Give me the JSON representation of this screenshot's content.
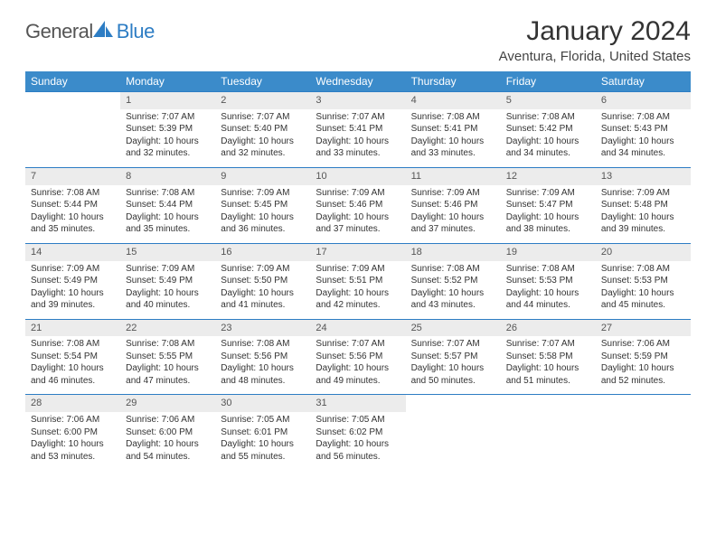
{
  "logo": {
    "general": "General",
    "blue": "Blue"
  },
  "title": "January 2024",
  "location": "Aventura, Florida, United States",
  "weekdays": [
    "Sunday",
    "Monday",
    "Tuesday",
    "Wednesday",
    "Thursday",
    "Friday",
    "Saturday"
  ],
  "colors": {
    "header_bg": "#3b8bca",
    "header_text": "#ffffff",
    "daynum_bg": "#ececec",
    "border": "#2d7dc4",
    "text": "#333333",
    "logo_gray": "#555555",
    "logo_blue": "#2d7dc4"
  },
  "first_weekday_index": 1,
  "days": [
    {
      "n": 1,
      "sunrise": "7:07 AM",
      "sunset": "5:39 PM",
      "daylight": "10 hours and 32 minutes."
    },
    {
      "n": 2,
      "sunrise": "7:07 AM",
      "sunset": "5:40 PM",
      "daylight": "10 hours and 32 minutes."
    },
    {
      "n": 3,
      "sunrise": "7:07 AM",
      "sunset": "5:41 PM",
      "daylight": "10 hours and 33 minutes."
    },
    {
      "n": 4,
      "sunrise": "7:08 AM",
      "sunset": "5:41 PM",
      "daylight": "10 hours and 33 minutes."
    },
    {
      "n": 5,
      "sunrise": "7:08 AM",
      "sunset": "5:42 PM",
      "daylight": "10 hours and 34 minutes."
    },
    {
      "n": 6,
      "sunrise": "7:08 AM",
      "sunset": "5:43 PM",
      "daylight": "10 hours and 34 minutes."
    },
    {
      "n": 7,
      "sunrise": "7:08 AM",
      "sunset": "5:44 PM",
      "daylight": "10 hours and 35 minutes."
    },
    {
      "n": 8,
      "sunrise": "7:08 AM",
      "sunset": "5:44 PM",
      "daylight": "10 hours and 35 minutes."
    },
    {
      "n": 9,
      "sunrise": "7:09 AM",
      "sunset": "5:45 PM",
      "daylight": "10 hours and 36 minutes."
    },
    {
      "n": 10,
      "sunrise": "7:09 AM",
      "sunset": "5:46 PM",
      "daylight": "10 hours and 37 minutes."
    },
    {
      "n": 11,
      "sunrise": "7:09 AM",
      "sunset": "5:46 PM",
      "daylight": "10 hours and 37 minutes."
    },
    {
      "n": 12,
      "sunrise": "7:09 AM",
      "sunset": "5:47 PM",
      "daylight": "10 hours and 38 minutes."
    },
    {
      "n": 13,
      "sunrise": "7:09 AM",
      "sunset": "5:48 PM",
      "daylight": "10 hours and 39 minutes."
    },
    {
      "n": 14,
      "sunrise": "7:09 AM",
      "sunset": "5:49 PM",
      "daylight": "10 hours and 39 minutes."
    },
    {
      "n": 15,
      "sunrise": "7:09 AM",
      "sunset": "5:49 PM",
      "daylight": "10 hours and 40 minutes."
    },
    {
      "n": 16,
      "sunrise": "7:09 AM",
      "sunset": "5:50 PM",
      "daylight": "10 hours and 41 minutes."
    },
    {
      "n": 17,
      "sunrise": "7:09 AM",
      "sunset": "5:51 PM",
      "daylight": "10 hours and 42 minutes."
    },
    {
      "n": 18,
      "sunrise": "7:08 AM",
      "sunset": "5:52 PM",
      "daylight": "10 hours and 43 minutes."
    },
    {
      "n": 19,
      "sunrise": "7:08 AM",
      "sunset": "5:53 PM",
      "daylight": "10 hours and 44 minutes."
    },
    {
      "n": 20,
      "sunrise": "7:08 AM",
      "sunset": "5:53 PM",
      "daylight": "10 hours and 45 minutes."
    },
    {
      "n": 21,
      "sunrise": "7:08 AM",
      "sunset": "5:54 PM",
      "daylight": "10 hours and 46 minutes."
    },
    {
      "n": 22,
      "sunrise": "7:08 AM",
      "sunset": "5:55 PM",
      "daylight": "10 hours and 47 minutes."
    },
    {
      "n": 23,
      "sunrise": "7:08 AM",
      "sunset": "5:56 PM",
      "daylight": "10 hours and 48 minutes."
    },
    {
      "n": 24,
      "sunrise": "7:07 AM",
      "sunset": "5:56 PM",
      "daylight": "10 hours and 49 minutes."
    },
    {
      "n": 25,
      "sunrise": "7:07 AM",
      "sunset": "5:57 PM",
      "daylight": "10 hours and 50 minutes."
    },
    {
      "n": 26,
      "sunrise": "7:07 AM",
      "sunset": "5:58 PM",
      "daylight": "10 hours and 51 minutes."
    },
    {
      "n": 27,
      "sunrise": "7:06 AM",
      "sunset": "5:59 PM",
      "daylight": "10 hours and 52 minutes."
    },
    {
      "n": 28,
      "sunrise": "7:06 AM",
      "sunset": "6:00 PM",
      "daylight": "10 hours and 53 minutes."
    },
    {
      "n": 29,
      "sunrise": "7:06 AM",
      "sunset": "6:00 PM",
      "daylight": "10 hours and 54 minutes."
    },
    {
      "n": 30,
      "sunrise": "7:05 AM",
      "sunset": "6:01 PM",
      "daylight": "10 hours and 55 minutes."
    },
    {
      "n": 31,
      "sunrise": "7:05 AM",
      "sunset": "6:02 PM",
      "daylight": "10 hours and 56 minutes."
    }
  ],
  "labels": {
    "sunrise": "Sunrise:",
    "sunset": "Sunset:",
    "daylight": "Daylight:"
  }
}
